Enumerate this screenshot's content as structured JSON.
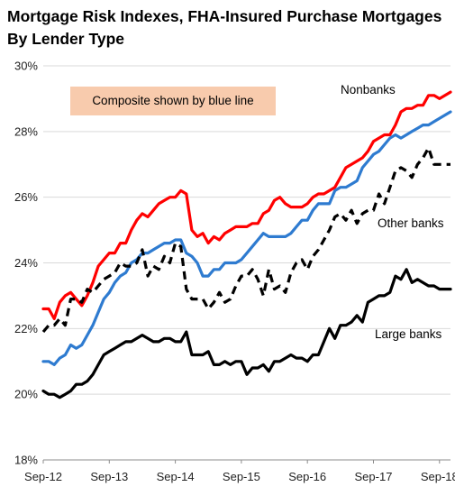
{
  "title_line1": "Mortgage Risk Indexes, FHA-Insured Purchase Mortgages",
  "title_line2": "By Lender Type",
  "note": "Composite shown by blue line",
  "chart_data": {
    "type": "line",
    "title": "Mortgage Risk Indexes, FHA-Insured Purchase Mortgages By Lender Type",
    "xlabel": "",
    "ylabel": "",
    "ylim": [
      18,
      30
    ],
    "y_ticks": [
      "18%",
      "20%",
      "22%",
      "24%",
      "26%",
      "28%",
      "30%"
    ],
    "x_tick_labels": [
      "Sep-12",
      "Sep-13",
      "Sep-14",
      "Sep-15",
      "Sep-16",
      "Sep-17",
      "Sep-18"
    ],
    "x_range_months": [
      0,
      74
    ],
    "series": [
      {
        "name": "Nonbanks",
        "color": "#ff0000",
        "style": "solid",
        "values": [
          22.6,
          22.6,
          22.3,
          22.8,
          23.0,
          23.1,
          22.9,
          22.7,
          23.0,
          23.4,
          23.9,
          24.1,
          24.3,
          24.3,
          24.6,
          24.6,
          25.0,
          25.3,
          25.5,
          25.4,
          25.6,
          25.8,
          25.9,
          26.0,
          26.0,
          26.2,
          26.1,
          25.0,
          24.8,
          24.9,
          24.6,
          24.8,
          24.7,
          24.9,
          25.0,
          25.1,
          25.1,
          25.1,
          25.2,
          25.2,
          25.5,
          25.6,
          25.9,
          26.0,
          25.8,
          25.7,
          25.7,
          25.7,
          25.8,
          26.0,
          26.1,
          26.1,
          26.2,
          26.3,
          26.6,
          26.9,
          27.0,
          27.1,
          27.2,
          27.4,
          27.7,
          27.8,
          27.9,
          27.9,
          28.2,
          28.6,
          28.7,
          28.7,
          28.8,
          28.8,
          29.1,
          29.1,
          29.0,
          29.1,
          29.2
        ]
      },
      {
        "name": "Composite",
        "color": "#2e7bd0",
        "style": "solid",
        "values": [
          21.0,
          21.0,
          20.9,
          21.1,
          21.2,
          21.5,
          21.4,
          21.5,
          21.8,
          22.1,
          22.5,
          22.9,
          23.1,
          23.4,
          23.6,
          23.7,
          24.0,
          24.1,
          24.3,
          24.3,
          24.4,
          24.5,
          24.6,
          24.6,
          24.7,
          24.7,
          24.3,
          24.2,
          24.0,
          23.6,
          23.6,
          23.8,
          23.8,
          24.0,
          24.0,
          24.0,
          24.1,
          24.3,
          24.5,
          24.7,
          24.9,
          24.8,
          24.8,
          24.8,
          24.8,
          24.9,
          25.1,
          25.3,
          25.3,
          25.6,
          25.8,
          25.8,
          25.8,
          26.2,
          26.3,
          26.3,
          26.4,
          26.5,
          26.9,
          27.1,
          27.3,
          27.4,
          27.6,
          27.8,
          27.9,
          27.8,
          27.9,
          28.0,
          28.1,
          28.2,
          28.2,
          28.3,
          28.4,
          28.5,
          28.6
        ]
      },
      {
        "name": "Other banks",
        "color": "#000000",
        "style": "dashed",
        "values": [
          21.9,
          22.1,
          22.1,
          22.3,
          22.1,
          22.9,
          22.9,
          22.8,
          23.2,
          23.1,
          23.3,
          23.5,
          23.6,
          23.7,
          24.0,
          23.9,
          23.9,
          24.0,
          24.4,
          23.6,
          23.9,
          23.8,
          24.2,
          24.0,
          24.6,
          24.5,
          23.2,
          22.9,
          22.9,
          22.9,
          22.6,
          22.8,
          23.1,
          22.8,
          22.9,
          23.3,
          23.6,
          23.6,
          23.8,
          23.5,
          23.0,
          23.8,
          23.2,
          23.3,
          23.1,
          23.7,
          24.0,
          24.1,
          23.8,
          24.2,
          24.4,
          24.7,
          25.0,
          25.4,
          25.5,
          25.3,
          25.6,
          25.2,
          25.5,
          25.6,
          25.6,
          26.1,
          25.8,
          26.3,
          26.8,
          26.9,
          26.8,
          26.6,
          27.0,
          27.2,
          27.5,
          27.0,
          27.0,
          27.0,
          27.0
        ]
      },
      {
        "name": "Large banks",
        "color": "#000000",
        "style": "solid",
        "values": [
          20.1,
          20.0,
          20.0,
          19.9,
          20.0,
          20.1,
          20.3,
          20.3,
          20.4,
          20.6,
          20.9,
          21.2,
          21.3,
          21.4,
          21.5,
          21.6,
          21.6,
          21.7,
          21.8,
          21.7,
          21.6,
          21.6,
          21.7,
          21.7,
          21.6,
          21.6,
          21.9,
          21.2,
          21.2,
          21.2,
          21.3,
          20.9,
          20.9,
          21.0,
          20.9,
          21.0,
          21.0,
          20.6,
          20.8,
          20.8,
          20.9,
          20.7,
          21.0,
          21.0,
          21.1,
          21.2,
          21.1,
          21.1,
          21.0,
          21.2,
          21.2,
          21.6,
          22.0,
          21.7,
          22.1,
          22.1,
          22.2,
          22.4,
          22.2,
          22.8,
          22.9,
          23.0,
          23.0,
          23.1,
          23.6,
          23.5,
          23.8,
          23.4,
          23.5,
          23.4,
          23.3,
          23.3,
          23.2,
          23.2,
          23.2
        ]
      }
    ],
    "annotations": [
      {
        "text": "Nonbanks",
        "series": "Nonbanks"
      },
      {
        "text": "Other banks",
        "series": "Other banks"
      },
      {
        "text": "Large banks",
        "series": "Large banks"
      }
    ],
    "grid": "horizontal",
    "legend": "none"
  }
}
